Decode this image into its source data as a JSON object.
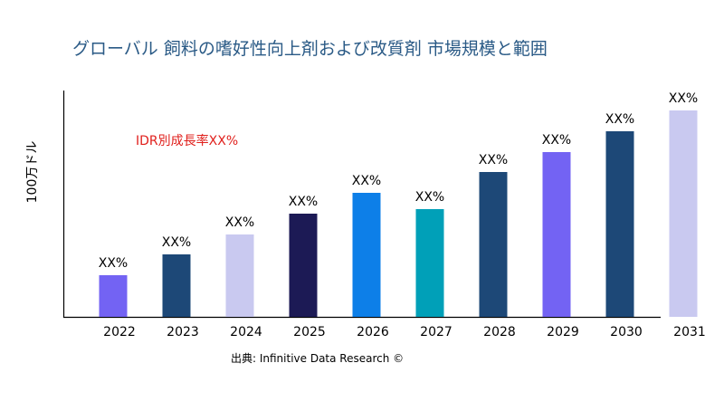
{
  "chart_data": {
    "type": "bar",
    "title": "グローバル 飼料の嗜好性向上剤および改質剤 市場規模と範囲",
    "ylabel": "100万ドル",
    "xlabel": "",
    "annotation": "IDR別成長率XX%",
    "source": "出典: Infinitive Data Research ©",
    "categories": [
      "2022",
      "2023",
      "2024",
      "2025",
      "2026",
      "2027",
      "2028",
      "2029",
      "2030",
      "2031"
    ],
    "values": [
      46,
      69,
      91,
      114,
      137,
      119,
      160,
      182,
      205,
      228
    ],
    "data_labels": [
      "XX%",
      "XX%",
      "XX%",
      "XX%",
      "XX%",
      "XX%",
      "XX%",
      "XX%",
      "XX%",
      "XX%"
    ],
    "colors": [
      "#7363f3",
      "#1d4877",
      "#c9c9f0",
      "#1c1a55",
      "#0d7fe8",
      "#00a0b8",
      "#1d4877",
      "#7363f3",
      "#1d4877",
      "#c9c9f0"
    ],
    "ylim": [
      0,
      250
    ],
    "grid": false,
    "title_color": "#2a5a86",
    "annotation_color": "#e0201c"
  }
}
